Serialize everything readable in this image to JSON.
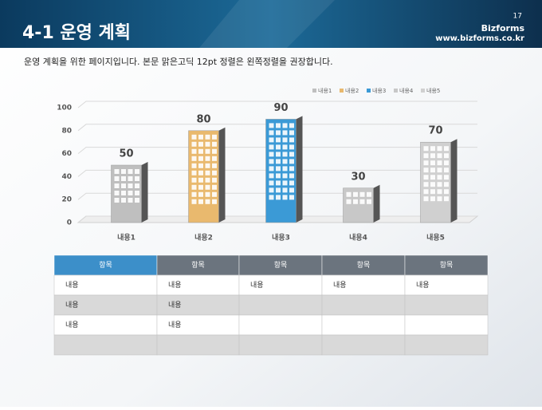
{
  "header": {
    "title": "4-1 운영 계획",
    "page": "17",
    "brand": "Bizforms",
    "url": "www.bizforms.co.kr"
  },
  "body_text": "운영 계획을 위한 페이지입니다. 본문 맑은고딕 12pt 정렬은 왼쪽정렬을 권장합니다.",
  "chart_data": {
    "type": "bar",
    "categories": [
      "내용1",
      "내용2",
      "내용3",
      "내용4",
      "내용5"
    ],
    "series": [
      {
        "name": "내용1",
        "color": "#bfbfbf",
        "values": [
          50,
          null,
          null,
          null,
          null
        ]
      },
      {
        "name": "내용2",
        "color": "#e9b96e",
        "values": [
          null,
          80,
          null,
          null,
          null
        ]
      },
      {
        "name": "내용3",
        "color": "#3b9ad6",
        "values": [
          null,
          null,
          90,
          null,
          null
        ]
      },
      {
        "name": "내용4",
        "color": "#c8c8c8",
        "values": [
          null,
          null,
          null,
          30,
          null
        ]
      },
      {
        "name": "내용5",
        "color": "#d0d0d0",
        "values": [
          null,
          null,
          null,
          null,
          70
        ]
      }
    ],
    "ylim": [
      0,
      100
    ],
    "yticks": [
      0,
      20,
      40,
      60,
      80,
      100
    ],
    "grid": true,
    "legend": "top-right"
  },
  "table": {
    "header": [
      "항목",
      "항목",
      "항목",
      "항목",
      "항목"
    ],
    "rows": [
      [
        "내용",
        "내용",
        "내용",
        "내용",
        "내용"
      ],
      [
        "내용",
        "내용"
      ],
      [
        "내용",
        "내용"
      ],
      []
    ]
  }
}
